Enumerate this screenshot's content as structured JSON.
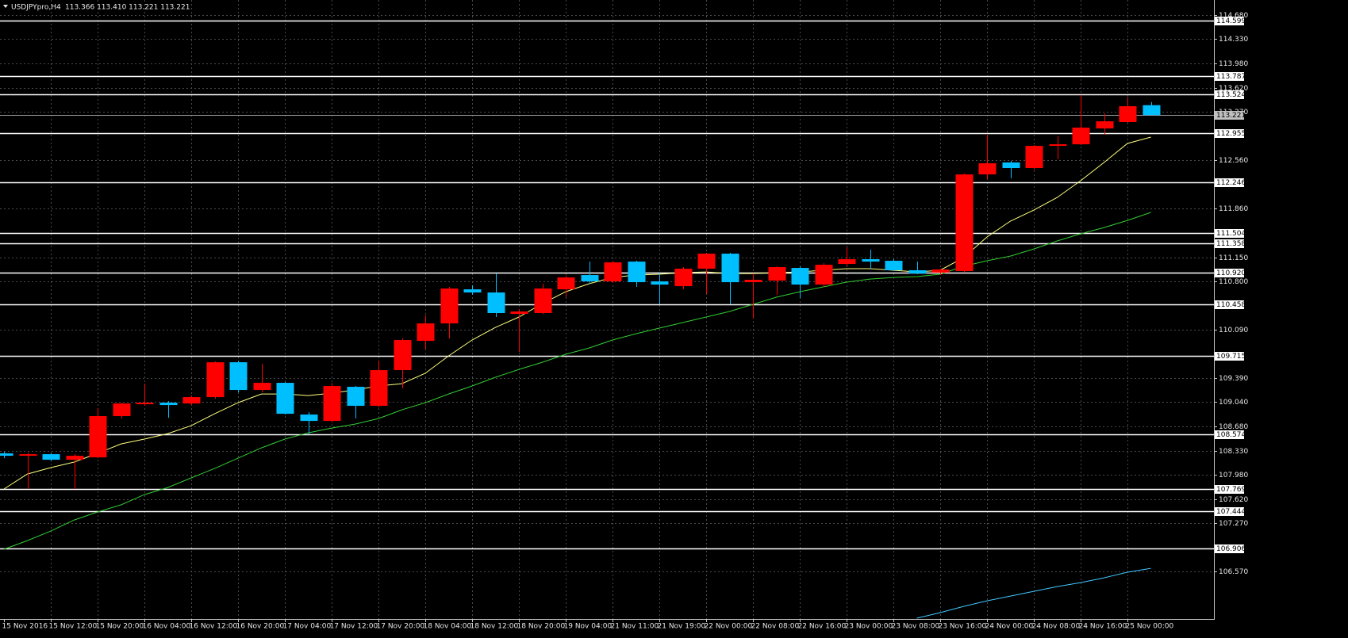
{
  "chart_data": {
    "type": "candlestick",
    "title": "USDJPYpro,H4",
    "subtitle": "113.366 113.410 113.221 113.221",
    "categories": [
      "15 Nov 2016",
      null,
      "15 Nov 12:00",
      null,
      "15 Nov 20:00",
      null,
      "16 Nov 04:00",
      null,
      "16 Nov 12:00",
      null,
      "16 Nov 20:00",
      null,
      "17 Nov 04:00",
      null,
      "17 Nov 12:00",
      null,
      "17 Nov 20:00",
      null,
      "18 Nov 04:00",
      null,
      "18 Nov 12:00",
      null,
      "18 Nov 20:00",
      null,
      "19 Nov 04:00",
      null,
      "21 Nov 11:00",
      null,
      "21 Nov 19:00",
      null,
      "22 Nov 00:00",
      null,
      "22 Nov 08:00",
      null,
      "22 Nov 16:00",
      null,
      "23 Nov 00:00",
      null,
      "23 Nov 08:00",
      null,
      "23 Nov 16:00",
      null,
      "24 Nov 00:00",
      null,
      "24 Nov 08:00",
      null,
      "24 Nov 16:00",
      null,
      "25 Nov 00:00",
      null
    ],
    "open": [
      108.291,
      108.256,
      108.279,
      108.198,
      108.233,
      108.834,
      109.007,
      109.03,
      109.018,
      109.111,
      109.619,
      109.215,
      109.319,
      108.857,
      108.764,
      109.261,
      108.984,
      109.504,
      109.931,
      110.185,
      110.682,
      110.636,
      110.324,
      110.336,
      110.682,
      110.89,
      110.798,
      111.086,
      110.798,
      110.728,
      110.983,
      111.202,
      110.786,
      110.809,
      110.994,
      110.751,
      111.052,
      111.121,
      111.098,
      110.96,
      110.925,
      110.948,
      112.357,
      112.531,
      112.45,
      112.773,
      112.796,
      113.027,
      113.12,
      113.366
    ],
    "high": [
      108.314,
      108.302,
      108.291,
      108.279,
      108.949,
      109.03,
      109.307,
      109.053,
      109.134,
      109.631,
      109.642,
      109.596,
      109.33,
      108.891,
      109.319,
      109.273,
      109.642,
      109.966,
      110.301,
      110.717,
      110.74,
      110.913,
      110.393,
      110.763,
      110.879,
      111.086,
      111.098,
      111.098,
      110.913,
      111.006,
      111.214,
      111.214,
      110.913,
      111.017,
      111.017,
      111.063,
      111.295,
      111.26,
      111.121,
      111.086,
      110.983,
      112.369,
      112.935,
      112.554,
      112.785,
      112.912,
      113.513,
      113.247,
      113.478,
      113.41
    ],
    "low": [
      108.221,
      107.771,
      108.175,
      107.771,
      108.221,
      108.799,
      108.984,
      108.81,
      108.995,
      109.088,
      109.18,
      109.18,
      108.857,
      108.568,
      108.741,
      108.799,
      108.961,
      109.238,
      109.804,
      109.966,
      110.601,
      110.278,
      109.769,
      110.324,
      110.567,
      110.763,
      110.775,
      110.717,
      110.463,
      110.682,
      110.613,
      110.463,
      110.255,
      110.601,
      110.555,
      110.717,
      111.017,
      110.983,
      110.948,
      110.902,
      110.89,
      110.925,
      112.288,
      112.3,
      112.427,
      112.577,
      112.785,
      112.935,
      113.108,
      113.221
    ],
    "close": [
      108.256,
      108.279,
      108.198,
      108.256,
      108.834,
      109.018,
      109.03,
      108.995,
      109.111,
      109.619,
      109.215,
      109.319,
      108.868,
      108.764,
      109.273,
      108.984,
      109.504,
      109.943,
      110.185,
      110.694,
      110.636,
      110.336,
      110.359,
      110.694,
      110.855,
      110.798,
      111.075,
      110.786,
      110.751,
      110.983,
      111.202,
      110.786,
      110.821,
      111.006,
      110.751,
      111.04,
      111.121,
      111.086,
      110.96,
      110.913,
      110.971,
      112.357,
      112.519,
      112.45,
      112.773,
      112.796,
      113.039,
      113.131,
      113.351,
      113.221
    ],
    "up_color": "#ff0000",
    "down_color": "#00bfff",
    "moving_averages": [
      {
        "color": "#ffff80",
        "values": [
          107.771,
          107.99,
          108.083,
          108.164,
          108.291,
          108.429,
          108.499,
          108.579,
          108.695,
          108.868,
          109.03,
          109.157,
          109.157,
          109.134,
          109.169,
          109.215,
          109.273,
          109.307,
          109.458,
          109.712,
          109.943,
          110.127,
          110.278,
          110.474,
          110.647,
          110.763,
          110.855,
          110.89,
          110.902,
          110.925,
          110.936,
          110.913,
          110.913,
          110.925,
          110.936,
          110.96,
          110.983,
          110.983,
          110.96,
          110.936,
          110.96,
          111.144,
          111.445,
          111.676,
          111.837,
          112.022,
          112.265,
          112.531,
          112.808,
          112.9
        ]
      },
      {
        "color": "#32cd32",
        "values": [
          106.893,
          107.02,
          107.158,
          107.32,
          107.436,
          107.54,
          107.69,
          107.794,
          107.933,
          108.071,
          108.221,
          108.371,
          108.499,
          108.591,
          108.66,
          108.718,
          108.799,
          108.926,
          109.03,
          109.157,
          109.273,
          109.4,
          109.515,
          109.619,
          109.735,
          109.827,
          109.943,
          110.035,
          110.116,
          110.197,
          110.278,
          110.359,
          110.463,
          110.567,
          110.647,
          110.717,
          110.786,
          110.832,
          110.855,
          110.867,
          110.902,
          111.017,
          111.098,
          111.167,
          111.271,
          111.387,
          111.491,
          111.583,
          111.687,
          111.803
        ]
      },
      {
        "color": "#40c8ff",
        "values": [
          null,
          null,
          null,
          null,
          null,
          null,
          null,
          null,
          null,
          null,
          null,
          null,
          null,
          null,
          null,
          null,
          null,
          null,
          null,
          null,
          null,
          null,
          null,
          null,
          null,
          null,
          null,
          null,
          null,
          null,
          null,
          null,
          null,
          null,
          null,
          null,
          null,
          null,
          null,
          105.888,
          105.969,
          106.061,
          106.142,
          106.211,
          106.28,
          106.35,
          106.407,
          106.477,
          106.558,
          106.615
        ]
      }
    ],
    "levels": [
      114.599,
      113.787,
      113.524,
      112.955,
      112.246,
      111.504,
      111.358,
      {
        "value": 110.92,
        "label": "110.920"
      },
      110.458,
      109.715,
      108.574,
      107.769,
      107.444,
      106.906
    ],
    "level_color": "#ffffff",
    "ylim": [
      105.877,
      114.899
    ],
    "yticks": [
      {
        "value": 114.68,
        "label": "114.680"
      },
      {
        "value": 114.33,
        "label": "114.330"
      },
      {
        "value": 113.98,
        "label": "113.980"
      },
      {
        "value": 113.62,
        "label": "113.620"
      },
      {
        "value": 113.27,
        "label": "113.270"
      },
      {
        "value": 112.56,
        "label": "112.560"
      },
      {
        "value": 111.86,
        "label": "111.860"
      },
      {
        "value": 111.15,
        "label": "111.150"
      },
      {
        "value": 110.8,
        "label": "110.800"
      },
      {
        "value": 110.09,
        "label": "110.090"
      },
      {
        "value": 109.39,
        "label": "109.390"
      },
      {
        "value": 109.04,
        "label": "109.040"
      },
      {
        "value": 108.68,
        "label": "108.680"
      },
      {
        "value": 108.33,
        "label": "108.330"
      },
      {
        "value": 107.98,
        "label": "107.980"
      },
      {
        "value": 107.62,
        "label": "107.620"
      },
      {
        "value": 107.27,
        "label": "107.270"
      },
      {
        "value": 106.57,
        "label": "106.570"
      }
    ],
    "grid": true
  }
}
